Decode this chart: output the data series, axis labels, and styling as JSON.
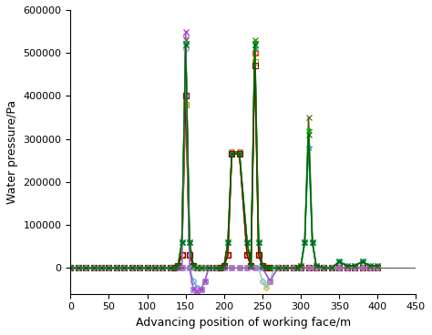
{
  "title": "",
  "xlabel": "Advancing position of working face/m",
  "ylabel": "Water pressure/Pa",
  "xlim": [
    0,
    450
  ],
  "ylim": [
    -60000,
    600000
  ],
  "xticks": [
    0,
    50,
    100,
    150,
    200,
    250,
    300,
    350,
    400,
    450
  ],
  "yticks": [
    0,
    100000,
    200000,
    300000,
    400000,
    500000,
    600000
  ],
  "series": [
    {
      "color": "#5b9bd5",
      "marker": "o",
      "markersize": 4,
      "linewidth": 0.9,
      "markerfilled": false,
      "x": [
        0,
        10,
        20,
        30,
        40,
        50,
        60,
        70,
        80,
        90,
        100,
        110,
        120,
        130,
        140,
        145,
        150,
        155,
        160,
        165,
        170,
        175,
        180,
        190,
        200,
        210,
        220,
        230,
        240,
        250,
        260,
        270,
        280,
        290,
        300,
        310,
        320,
        330,
        340,
        350,
        360,
        370,
        380,
        390,
        400
      ],
      "y": [
        0,
        0,
        0,
        0,
        0,
        0,
        0,
        0,
        0,
        0,
        0,
        0,
        0,
        0,
        0,
        0,
        400000,
        0,
        -30000,
        -45000,
        -50000,
        -30000,
        0,
        0,
        0,
        0,
        0,
        0,
        0,
        0,
        -30000,
        0,
        0,
        0,
        0,
        0,
        0,
        0,
        0,
        0,
        0,
        0,
        0,
        0,
        0
      ]
    },
    {
      "color": "#ff0000",
      "marker": "o",
      "markersize": 4,
      "linewidth": 0.9,
      "markerfilled": false,
      "x": [
        0,
        10,
        20,
        30,
        40,
        50,
        60,
        70,
        80,
        90,
        100,
        110,
        120,
        130,
        135,
        140,
        145,
        150,
        155,
        160,
        165,
        170,
        180,
        190,
        195,
        200,
        205,
        210,
        220,
        230,
        235,
        240,
        245,
        250,
        255,
        260,
        270,
        280,
        290,
        300,
        310,
        320,
        330,
        340,
        350,
        360,
        370,
        380,
        390,
        400
      ],
      "y": [
        0,
        0,
        0,
        0,
        0,
        0,
        0,
        0,
        0,
        0,
        0,
        0,
        0,
        0,
        0,
        5000,
        30000,
        510000,
        30000,
        5000,
        0,
        0,
        0,
        0,
        0,
        5000,
        30000,
        270000,
        270000,
        30000,
        5000,
        500000,
        30000,
        5000,
        0,
        0,
        0,
        0,
        0,
        0,
        0,
        0,
        0,
        0,
        0,
        0,
        0,
        0,
        0,
        0
      ]
    },
    {
      "color": "#595900",
      "marker": "x",
      "markersize": 4,
      "linewidth": 1.1,
      "markerfilled": true,
      "x": [
        0,
        10,
        20,
        30,
        40,
        50,
        60,
        70,
        80,
        90,
        100,
        110,
        120,
        130,
        135,
        140,
        145,
        150,
        155,
        160,
        165,
        170,
        180,
        190,
        195,
        200,
        205,
        210,
        220,
        230,
        235,
        240,
        245,
        250,
        255,
        260,
        270,
        280,
        295,
        300,
        305,
        310,
        315,
        320,
        330,
        340,
        350,
        360,
        370,
        380,
        390,
        400
      ],
      "y": [
        0,
        0,
        0,
        0,
        0,
        0,
        0,
        0,
        0,
        0,
        0,
        0,
        0,
        0,
        0,
        5000,
        60000,
        530000,
        60000,
        5000,
        0,
        0,
        0,
        0,
        0,
        5000,
        60000,
        270000,
        270000,
        60000,
        5000,
        530000,
        60000,
        5000,
        0,
        0,
        0,
        0,
        0,
        5000,
        60000,
        350000,
        60000,
        5000,
        0,
        0,
        15000,
        5000,
        5000,
        15000,
        5000,
        5000
      ]
    },
    {
      "color": "#00aa00",
      "marker": "*",
      "markersize": 5,
      "linewidth": 1.1,
      "markerfilled": true,
      "x": [
        0,
        10,
        20,
        30,
        40,
        50,
        60,
        70,
        80,
        90,
        100,
        110,
        120,
        130,
        135,
        140,
        145,
        150,
        155,
        160,
        165,
        170,
        180,
        190,
        195,
        200,
        205,
        210,
        220,
        230,
        235,
        240,
        245,
        250,
        255,
        260,
        270,
        280,
        295,
        300,
        305,
        310,
        315,
        320,
        330,
        340,
        350,
        360,
        370,
        380,
        390,
        400
      ],
      "y": [
        0,
        0,
        0,
        0,
        0,
        0,
        0,
        0,
        0,
        0,
        0,
        0,
        0,
        0,
        0,
        5000,
        60000,
        525000,
        60000,
        5000,
        0,
        0,
        0,
        0,
        0,
        5000,
        60000,
        265000,
        265000,
        60000,
        5000,
        525000,
        60000,
        5000,
        0,
        0,
        0,
        0,
        0,
        5000,
        60000,
        320000,
        60000,
        5000,
        0,
        0,
        15000,
        5000,
        5000,
        15000,
        5000,
        5000
      ]
    },
    {
      "color": "#cc00cc",
      "marker": "x",
      "markersize": 4,
      "linewidth": 0.8,
      "markerfilled": true,
      "x": [
        0,
        10,
        20,
        30,
        40,
        50,
        60,
        70,
        80,
        90,
        100,
        110,
        120,
        130,
        140,
        145,
        150,
        155,
        160,
        165,
        170,
        175,
        180,
        190,
        200,
        210,
        220,
        230,
        240,
        250,
        260,
        270,
        280,
        290,
        300,
        310,
        320,
        330,
        340,
        350,
        360,
        370,
        380,
        390,
        400
      ],
      "y": [
        0,
        0,
        0,
        0,
        0,
        0,
        0,
        0,
        0,
        0,
        0,
        0,
        0,
        0,
        0,
        0,
        550000,
        0,
        -50000,
        -55000,
        -50000,
        -30000,
        0,
        0,
        0,
        0,
        0,
        0,
        0,
        0,
        -30000,
        0,
        0,
        0,
        0,
        0,
        0,
        0,
        0,
        0,
        0,
        0,
        0,
        0,
        0
      ]
    },
    {
      "color": "#00aaaa",
      "marker": "*",
      "markersize": 5,
      "linewidth": 1.0,
      "markerfilled": true,
      "x": [
        0,
        10,
        20,
        30,
        40,
        50,
        60,
        70,
        80,
        90,
        100,
        110,
        120,
        130,
        135,
        140,
        145,
        150,
        155,
        160,
        165,
        170,
        180,
        190,
        195,
        200,
        205,
        210,
        220,
        230,
        235,
        240,
        245,
        250,
        255,
        260,
        270,
        280,
        295,
        300,
        305,
        310,
        315,
        320,
        330,
        340,
        350,
        360,
        370,
        380,
        390,
        400
      ],
      "y": [
        0,
        0,
        0,
        0,
        0,
        0,
        0,
        0,
        0,
        0,
        0,
        0,
        0,
        0,
        0,
        5000,
        60000,
        520000,
        60000,
        5000,
        0,
        0,
        0,
        0,
        0,
        5000,
        60000,
        265000,
        265000,
        60000,
        5000,
        510000,
        60000,
        5000,
        0,
        0,
        0,
        0,
        0,
        5000,
        60000,
        280000,
        60000,
        5000,
        0,
        0,
        15000,
        5000,
        5000,
        15000,
        5000,
        5000
      ]
    },
    {
      "color": "#e06000",
      "marker": "s",
      "markersize": 4,
      "linewidth": 1.0,
      "markerfilled": false,
      "x": [
        0,
        10,
        20,
        30,
        40,
        50,
        60,
        70,
        80,
        90,
        100,
        110,
        120,
        130,
        135,
        140,
        145,
        150,
        155,
        160,
        165,
        170,
        180,
        190,
        195,
        200,
        205,
        210,
        220,
        230,
        235,
        240,
        245,
        250,
        255,
        260,
        270,
        280,
        290,
        300,
        310,
        320,
        330,
        340,
        350,
        360,
        370,
        380,
        390,
        400
      ],
      "y": [
        0,
        0,
        0,
        0,
        0,
        0,
        0,
        0,
        0,
        0,
        0,
        0,
        0,
        0,
        0,
        5000,
        30000,
        400000,
        30000,
        5000,
        0,
        0,
        0,
        0,
        0,
        5000,
        30000,
        265000,
        265000,
        30000,
        5000,
        500000,
        30000,
        5000,
        0,
        0,
        0,
        0,
        0,
        0,
        0,
        0,
        0,
        0,
        0,
        0,
        0,
        0,
        0,
        0
      ]
    },
    {
      "color": "#88aa00",
      "marker": "s",
      "markersize": 4,
      "linewidth": 1.0,
      "markerfilled": false,
      "x": [
        0,
        10,
        20,
        30,
        40,
        50,
        60,
        70,
        80,
        90,
        100,
        110,
        120,
        130,
        135,
        140,
        145,
        150,
        155,
        160,
        165,
        170,
        180,
        190,
        195,
        200,
        205,
        210,
        220,
        230,
        235,
        240,
        245,
        250,
        255,
        260,
        270,
        280,
        290,
        300,
        310,
        320,
        330,
        340,
        350,
        360,
        370,
        380,
        390,
        400
      ],
      "y": [
        0,
        0,
        0,
        0,
        0,
        0,
        0,
        0,
        0,
        0,
        0,
        0,
        0,
        0,
        0,
        5000,
        30000,
        380000,
        30000,
        5000,
        0,
        0,
        0,
        0,
        0,
        5000,
        30000,
        265000,
        265000,
        30000,
        5000,
        480000,
        30000,
        5000,
        0,
        0,
        0,
        0,
        0,
        0,
        0,
        0,
        0,
        0,
        0,
        0,
        0,
        0,
        0,
        0
      ]
    },
    {
      "color": "#ddaa00",
      "marker": "D",
      "markersize": 3,
      "linewidth": 0.8,
      "markerfilled": false,
      "x": [
        0,
        10,
        20,
        30,
        40,
        50,
        60,
        70,
        80,
        90,
        100,
        110,
        120,
        130,
        140,
        145,
        150,
        155,
        160,
        165,
        170,
        175,
        180,
        190,
        200,
        210,
        220,
        230,
        240,
        245,
        250,
        255,
        260,
        265,
        270,
        280,
        290,
        300,
        310,
        320,
        330,
        340,
        350,
        360,
        370,
        380,
        390,
        400
      ],
      "y": [
        0,
        0,
        0,
        0,
        0,
        0,
        0,
        0,
        0,
        0,
        0,
        0,
        0,
        0,
        0,
        0,
        380000,
        0,
        0,
        0,
        0,
        0,
        0,
        0,
        0,
        0,
        0,
        0,
        0,
        0,
        -30000,
        -45000,
        -30000,
        0,
        0,
        0,
        0,
        0,
        0,
        0,
        0,
        0,
        0,
        0,
        0,
        0,
        0,
        0
      ]
    },
    {
      "color": "#8b0000",
      "marker": "s",
      "markersize": 4,
      "linewidth": 1.0,
      "markerfilled": false,
      "x": [
        0,
        10,
        20,
        30,
        40,
        50,
        60,
        70,
        80,
        90,
        100,
        110,
        120,
        130,
        135,
        140,
        145,
        150,
        155,
        160,
        165,
        170,
        180,
        190,
        195,
        200,
        205,
        210,
        220,
        230,
        235,
        240,
        245,
        250,
        255,
        260,
        270,
        280,
        290,
        300,
        310,
        320,
        330,
        340,
        350,
        360,
        370,
        380,
        390,
        400
      ],
      "y": [
        0,
        0,
        0,
        0,
        0,
        0,
        0,
        0,
        0,
        0,
        0,
        0,
        0,
        0,
        0,
        5000,
        30000,
        400000,
        30000,
        5000,
        0,
        0,
        0,
        0,
        0,
        5000,
        30000,
        265000,
        265000,
        30000,
        5000,
        470000,
        30000,
        5000,
        0,
        0,
        0,
        0,
        0,
        0,
        0,
        0,
        0,
        0,
        0,
        0,
        0,
        0,
        0,
        0
      ]
    },
    {
      "color": "#87ceeb",
      "marker": "o",
      "markersize": 4,
      "linewidth": 0.9,
      "markerfilled": false,
      "x": [
        0,
        10,
        20,
        30,
        40,
        50,
        60,
        70,
        80,
        90,
        100,
        110,
        120,
        130,
        140,
        145,
        150,
        155,
        160,
        165,
        170,
        175,
        180,
        190,
        200,
        210,
        220,
        230,
        240,
        245,
        250,
        255,
        260,
        265,
        270,
        280,
        290,
        300,
        310,
        320,
        330,
        340,
        350,
        360,
        370,
        380,
        390,
        400
      ],
      "y": [
        0,
        0,
        0,
        0,
        0,
        0,
        0,
        0,
        0,
        0,
        0,
        0,
        0,
        0,
        0,
        0,
        510000,
        0,
        0,
        0,
        0,
        0,
        0,
        0,
        0,
        0,
        0,
        0,
        0,
        0,
        -30000,
        -40000,
        -30000,
        0,
        0,
        0,
        0,
        0,
        0,
        0,
        0,
        0,
        0,
        0,
        0,
        0,
        0,
        0
      ]
    },
    {
      "color": "#9966cc",
      "marker": "o",
      "markersize": 4,
      "linewidth": 0.9,
      "markerfilled": false,
      "x": [
        0,
        10,
        20,
        30,
        40,
        50,
        60,
        70,
        80,
        90,
        100,
        110,
        120,
        130,
        140,
        145,
        150,
        155,
        160,
        165,
        170,
        175,
        180,
        190,
        200,
        210,
        220,
        230,
        240,
        250,
        260,
        270,
        280,
        290,
        300,
        310,
        320,
        330,
        340,
        350,
        360,
        370,
        380,
        390,
        400
      ],
      "y": [
        0,
        0,
        0,
        0,
        0,
        0,
        0,
        0,
        0,
        0,
        0,
        0,
        0,
        0,
        0,
        0,
        540000,
        0,
        -50000,
        -55000,
        -50000,
        -30000,
        0,
        0,
        0,
        0,
        0,
        0,
        0,
        0,
        -30000,
        0,
        0,
        0,
        0,
        0,
        0,
        0,
        0,
        0,
        0,
        0,
        0,
        0,
        0
      ]
    },
    {
      "color": "#006600",
      "marker": "x",
      "markersize": 4,
      "linewidth": 1.0,
      "markerfilled": true,
      "x": [
        0,
        10,
        20,
        30,
        40,
        50,
        60,
        70,
        80,
        90,
        100,
        110,
        120,
        130,
        135,
        140,
        145,
        150,
        155,
        160,
        165,
        170,
        180,
        190,
        195,
        200,
        205,
        210,
        220,
        230,
        235,
        240,
        245,
        250,
        255,
        260,
        270,
        280,
        295,
        300,
        305,
        310,
        315,
        320,
        330,
        340,
        350,
        360,
        370,
        380,
        390,
        400
      ],
      "y": [
        0,
        0,
        0,
        0,
        0,
        0,
        0,
        0,
        0,
        0,
        0,
        0,
        0,
        0,
        0,
        5000,
        60000,
        520000,
        60000,
        5000,
        0,
        0,
        0,
        0,
        0,
        5000,
        60000,
        265000,
        265000,
        60000,
        5000,
        520000,
        60000,
        5000,
        0,
        0,
        0,
        0,
        0,
        5000,
        60000,
        310000,
        60000,
        5000,
        0,
        0,
        15000,
        5000,
        5000,
        15000,
        5000,
        5000
      ]
    }
  ]
}
